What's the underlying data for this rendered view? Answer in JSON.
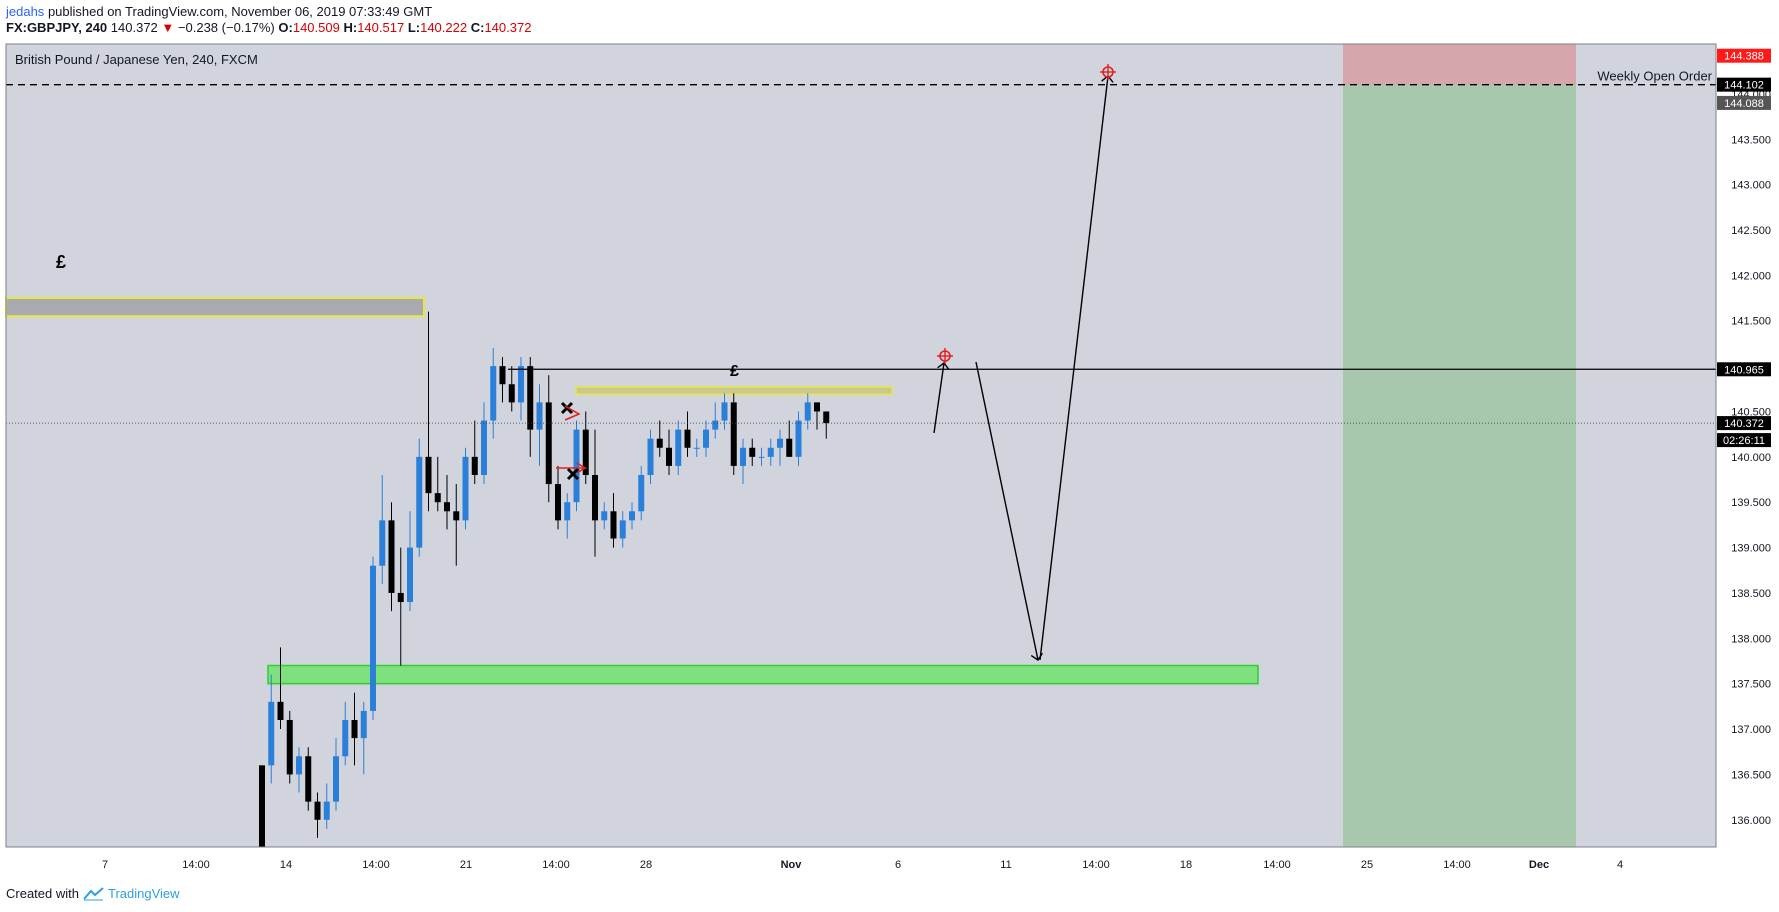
{
  "header": {
    "author": "jedahs",
    "published": "published on TradingView.com, November 06, 2019 07:33:49 GMT",
    "symbol": "FX:GBPJPY, 240",
    "price": "140.372",
    "change_arrow": "▼",
    "change": "−0.238 (−0.17%)",
    "o_label": "O:",
    "o_value": "140.509",
    "h_label": "H:",
    "h_value": "140.517",
    "l_label": "L:",
    "l_value": "140.222",
    "c_label": "C:",
    "c_value": "140.372"
  },
  "footer": {
    "created_with": "Created with",
    "brand": "TradingView"
  },
  "chart_data": {
    "type": "candlestick",
    "title": "British Pound / Japanese Yen, 240, FXCM",
    "ylim": [
      135.7,
      144.55
    ],
    "y_ticks": [
      136.0,
      136.5,
      137.0,
      137.5,
      138.0,
      138.5,
      139.0,
      139.5,
      140.0,
      140.5,
      141.0,
      141.5,
      142.0,
      142.5,
      143.0,
      143.5,
      144.0
    ],
    "x_ticks": [
      "7",
      "14:00",
      "14",
      "14:00",
      "21",
      "14:00",
      "28",
      "Nov",
      "6",
      "11",
      "14:00",
      "18",
      "14:00",
      "25",
      "14:00",
      "Dec",
      "4"
    ],
    "colors": {
      "up": "#2a7fd8",
      "down": "#000000",
      "background": "#d1d4dd",
      "demand_zone": "#7fe07f",
      "supply_zone": "#a9a9b2",
      "zone_border": "#e8e83c",
      "target_zone": "#a7c8ad",
      "stop_zone": "#d7a6ad"
    },
    "levels": [
      {
        "name": "Weekly Open Order",
        "value": 144.102,
        "style": "dashed"
      },
      {
        "value": 140.965,
        "style": "solid"
      },
      {
        "value": 140.372,
        "style": "dotted",
        "countdown": "02:26:11"
      }
    ],
    "price_labels": [
      {
        "value": 144.388,
        "text": "144.388",
        "color": "#ff1a1a"
      },
      {
        "value": 144.102,
        "text": "144.102",
        "color": "#000000"
      },
      {
        "value": 144.088,
        "text": "144.088",
        "color": "#555555"
      },
      {
        "value": 140.965,
        "text": "140.965",
        "color": "#000000"
      },
      {
        "value": 140.372,
        "text": "140.372",
        "color": "#000000"
      }
    ],
    "annotations": [
      {
        "text": "£"
      },
      {
        "text": "£"
      },
      {
        "text": "Weekly Open Order"
      }
    ],
    "candles": [
      [
        136.6,
        136.6,
        135.6,
        135.7
      ],
      [
        136.6,
        137.6,
        136.4,
        137.3
      ],
      [
        137.3,
        137.9,
        137.0,
        137.1
      ],
      [
        137.1,
        137.2,
        136.4,
        136.5
      ],
      [
        136.5,
        136.8,
        136.3,
        136.7
      ],
      [
        136.7,
        136.8,
        136.1,
        136.2
      ],
      [
        136.2,
        136.3,
        135.8,
        136.0
      ],
      [
        136.0,
        136.4,
        135.9,
        136.2
      ],
      [
        136.2,
        136.9,
        136.1,
        136.7
      ],
      [
        136.7,
        137.3,
        136.6,
        137.1
      ],
      [
        137.1,
        137.4,
        136.6,
        136.9
      ],
      [
        136.9,
        137.3,
        136.5,
        137.2
      ],
      [
        137.2,
        138.9,
        137.1,
        138.8
      ],
      [
        138.8,
        139.8,
        138.6,
        139.3
      ],
      [
        139.3,
        139.5,
        138.3,
        138.5
      ],
      [
        138.5,
        139.0,
        137.7,
        138.4
      ],
      [
        138.4,
        139.4,
        138.3,
        139.0
      ],
      [
        139.0,
        140.2,
        138.9,
        140.0
      ],
      [
        140.0,
        141.6,
        139.4,
        139.6
      ],
      [
        139.6,
        140.0,
        139.4,
        139.5
      ],
      [
        139.5,
        139.8,
        139.2,
        139.4
      ],
      [
        139.4,
        139.7,
        138.8,
        139.3
      ],
      [
        139.3,
        140.1,
        139.2,
        140.0
      ],
      [
        140.0,
        140.4,
        139.7,
        139.8
      ],
      [
        139.8,
        140.6,
        139.7,
        140.4
      ],
      [
        140.4,
        141.2,
        140.2,
        141.0
      ],
      [
        141.0,
        141.1,
        140.6,
        140.8
      ],
      [
        140.8,
        141.0,
        140.5,
        140.6
      ],
      [
        140.6,
        141.1,
        140.4,
        141.0
      ],
      [
        141.0,
        141.1,
        140.0,
        140.3
      ],
      [
        140.3,
        140.8,
        139.9,
        140.6
      ],
      [
        140.6,
        140.9,
        139.5,
        139.7
      ],
      [
        139.7,
        139.9,
        139.2,
        139.3
      ],
      [
        139.3,
        139.6,
        139.1,
        139.5
      ],
      [
        139.5,
        140.4,
        139.4,
        140.3
      ],
      [
        140.3,
        140.5,
        139.7,
        139.8
      ],
      [
        139.8,
        140.3,
        138.9,
        139.3
      ],
      [
        139.3,
        139.5,
        139.2,
        139.4
      ],
      [
        139.4,
        139.6,
        139.0,
        139.1
      ],
      [
        139.1,
        139.4,
        139.0,
        139.3
      ],
      [
        139.3,
        139.5,
        139.2,
        139.4
      ],
      [
        139.4,
        139.9,
        139.3,
        139.8
      ],
      [
        139.8,
        140.3,
        139.7,
        140.2
      ],
      [
        140.2,
        140.4,
        140.0,
        140.1
      ],
      [
        140.1,
        140.3,
        139.8,
        139.9
      ],
      [
        139.9,
        140.4,
        139.8,
        140.3
      ],
      [
        140.3,
        140.5,
        140.0,
        140.1
      ],
      [
        140.1,
        140.2,
        140.0,
        140.1
      ],
      [
        140.1,
        140.4,
        140.0,
        140.3
      ],
      [
        140.3,
        140.6,
        140.2,
        140.4
      ],
      [
        140.4,
        140.7,
        140.3,
        140.6
      ],
      [
        140.6,
        140.7,
        139.8,
        139.9
      ],
      [
        139.9,
        140.2,
        139.7,
        140.1
      ],
      [
        140.1,
        140.2,
        139.9,
        140.0
      ],
      [
        140.0,
        140.1,
        139.9,
        140.0
      ],
      [
        140.0,
        140.2,
        139.9,
        140.1
      ],
      [
        140.1,
        140.3,
        139.9,
        140.2
      ],
      [
        140.2,
        140.4,
        140.0,
        140.0
      ],
      [
        140.0,
        140.5,
        139.9,
        140.4
      ],
      [
        140.4,
        140.7,
        140.3,
        140.6
      ],
      [
        140.6,
        140.6,
        140.3,
        140.5
      ],
      [
        140.5,
        140.5,
        140.2,
        140.372
      ]
    ]
  }
}
